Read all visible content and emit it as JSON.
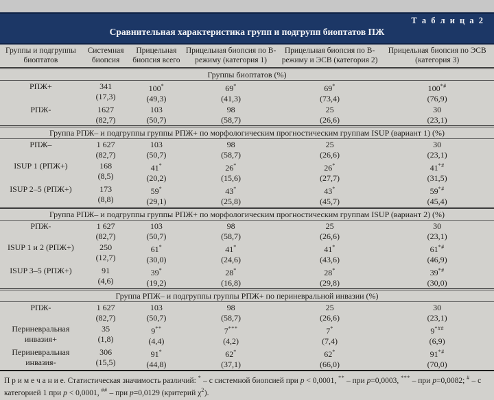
{
  "titlebar": {
    "tab": "Т а б л и ц а   2",
    "title": "Сравнительная характеристика групп и подгрупп биоптатов ПЖ"
  },
  "colors": {
    "navy_header": "#1c3766",
    "page_background": "#c7c7c7",
    "table_background": "#d2d1cd",
    "title_text": "#f2f3f6"
  },
  "table": {
    "columns": [
      "Группы и подгруппы биоптатов",
      "Системная биопсия",
      "Прицельная биопсия всего",
      "Прицельная биопсия по В-режиму (категория 1)",
      "Прицельная биопсия по В-режиму и ЭСВ (категория 2)",
      "Прицельная биопсия по ЭСВ (категория 3)"
    ],
    "sections": [
      {
        "header": "Группы биоптатов (%)",
        "rows": [
          {
            "label": "РПЖ+",
            "cells": [
              {
                "v": "341",
                "s": "",
                "p": "(17,3)"
              },
              {
                "v": "100",
                "s": "*",
                "p": "(49,3)"
              },
              {
                "v": "69",
                "s": "*",
                "p": "(41,3)"
              },
              {
                "v": "69",
                "s": "*",
                "p": "(73,4)"
              },
              {
                "v": "100",
                "s": "*#",
                "p": "(76,9)"
              }
            ]
          },
          {
            "label": "РПЖ-",
            "cells": [
              {
                "v": "1627",
                "s": "",
                "p": "(82,7)"
              },
              {
                "v": "103",
                "s": "",
                "p": "(50,7)"
              },
              {
                "v": "98",
                "s": "",
                "p": "(58,7)"
              },
              {
                "v": "25",
                "s": "",
                "p": "(26,6)"
              },
              {
                "v": "30",
                "s": "",
                "p": "(23,1)"
              }
            ]
          }
        ]
      },
      {
        "header": "Группа РПЖ– и подгруппы группы РПЖ+ по морфологическим прогностическим группам ISUP (вариант 1) (%)",
        "rows": [
          {
            "label": "РПЖ–",
            "cells": [
              {
                "v": "1 627",
                "s": "",
                "p": "(82,7)"
              },
              {
                "v": "103",
                "s": "",
                "p": "(50,7)"
              },
              {
                "v": "98",
                "s": "",
                "p": "(58,7)"
              },
              {
                "v": "25",
                "s": "",
                "p": "(26,6)"
              },
              {
                "v": "30",
                "s": "",
                "p": "(23,1)"
              }
            ]
          },
          {
            "label": "ISUP 1 (РПЖ+)",
            "cells": [
              {
                "v": "168",
                "s": "",
                "p": "(8,5)"
              },
              {
                "v": "41",
                "s": "*",
                "p": "(20,2)"
              },
              {
                "v": "26",
                "s": "*",
                "p": "(15,6)"
              },
              {
                "v": "26",
                "s": "*",
                "p": "(27,7)"
              },
              {
                "v": "41",
                "s": "*#",
                "p": "(31,5)"
              }
            ]
          },
          {
            "label": "ISUP 2–5 (РПЖ+)",
            "cells": [
              {
                "v": "173",
                "s": "",
                "p": "(8,8)"
              },
              {
                "v": "59",
                "s": "*",
                "p": "(29,1)"
              },
              {
                "v": "43",
                "s": "*",
                "p": "(25,8)"
              },
              {
                "v": "43",
                "s": "*",
                "p": "(45,7)"
              },
              {
                "v": "59",
                "s": "*#",
                "p": "(45,4)"
              }
            ]
          }
        ]
      },
      {
        "header": "Группа РПЖ– и подгруппы группы РПЖ+ по морфологическим прогностическим группам ISUP (вариант 2) (%)",
        "rows": [
          {
            "label": "РПЖ-",
            "cells": [
              {
                "v": "1 627",
                "s": "",
                "p": "(82,7)"
              },
              {
                "v": "103",
                "s": "",
                "p": "(50,7)"
              },
              {
                "v": "98",
                "s": "",
                "p": "(58,7)"
              },
              {
                "v": "25",
                "s": "",
                "p": "(26,6)"
              },
              {
                "v": "30",
                "s": "",
                "p": "(23,1)"
              }
            ]
          },
          {
            "label": "ISUP 1 и 2 (РПЖ+)",
            "cells": [
              {
                "v": "250",
                "s": "",
                "p": "(12,7)"
              },
              {
                "v": "61",
                "s": "*",
                "p": "(30,0)"
              },
              {
                "v": "41",
                "s": "*",
                "p": "(24,6)"
              },
              {
                "v": "41",
                "s": "*",
                "p": "(43,6)"
              },
              {
                "v": "61",
                "s": "*#",
                "p": "(46,9)"
              }
            ]
          },
          {
            "label": "ISUP 3–5 (РПЖ+)",
            "cells": [
              {
                "v": "91",
                "s": "",
                "p": "(4,6)"
              },
              {
                "v": "39",
                "s": "*",
                "p": "(19,2)"
              },
              {
                "v": "28",
                "s": "*",
                "p": "(16,8)"
              },
              {
                "v": "28",
                "s": "*",
                "p": "(29,8)"
              },
              {
                "v": "39",
                "s": "*#",
                "p": "(30,0)"
              }
            ]
          }
        ]
      },
      {
        "header": "Группа РПЖ– и подгруппы группы РПЖ+ по периневральной инвазии (%)",
        "rows": [
          {
            "label": "РПЖ-",
            "cells": [
              {
                "v": "1 627",
                "s": "",
                "p": "(82,7)"
              },
              {
                "v": "103",
                "s": "",
                "p": "(50,7)"
              },
              {
                "v": "98",
                "s": "",
                "p": "(58,7)"
              },
              {
                "v": "25",
                "s": "",
                "p": "(26,6)"
              },
              {
                "v": "30",
                "s": "",
                "p": "(23,1)"
              }
            ]
          },
          {
            "label": "Периневральная инвазия+",
            "cells": [
              {
                "v": "35",
                "s": "",
                "p": "(1,8)"
              },
              {
                "v": "9",
                "s": "**",
                "p": "(4,4)"
              },
              {
                "v": "7",
                "s": "***",
                "p": "(4,2)"
              },
              {
                "v": "7",
                "s": "*",
                "p": "(7,4)"
              },
              {
                "v": "9",
                "s": "*##",
                "p": "(6,9)"
              }
            ]
          },
          {
            "label": "Периневральная инвазия-",
            "cells": [
              {
                "v": "306",
                "s": "",
                "p": "(15,5)"
              },
              {
                "v": "91",
                "s": "*",
                "p": "(44,8)"
              },
              {
                "v": "62",
                "s": "*",
                "p": "(37,1)"
              },
              {
                "v": "62",
                "s": "*",
                "p": "(66,0)"
              },
              {
                "v": "91",
                "s": "*#",
                "p": "(70,0)"
              }
            ]
          }
        ]
      }
    ]
  },
  "footnote": {
    "segments": [
      {
        "t": "П р и м е ч а н и е."
      },
      {
        "t": " Статистическая значимость различий: "
      },
      {
        "t": "*",
        "sup": true
      },
      {
        "t": " – с системной биопсией при "
      },
      {
        "t": "p",
        "it": true
      },
      {
        "t": " < 0,0001, "
      },
      {
        "t": "**",
        "sup": true
      },
      {
        "t": " – при "
      },
      {
        "t": "p",
        "it": true
      },
      {
        "t": "=0,0003, "
      },
      {
        "t": "***",
        "sup": true
      },
      {
        "t": " – при "
      },
      {
        "t": "p",
        "it": true
      },
      {
        "t": "=0,0082; "
      },
      {
        "t": "#",
        "sup": true
      },
      {
        "t": " – с категорией 1 при "
      },
      {
        "t": "p",
        "it": true
      },
      {
        "t": " < 0,0001, "
      },
      {
        "t": "##",
        "sup": true
      },
      {
        "t": " – при "
      },
      {
        "t": "p",
        "it": true
      },
      {
        "t": "=0,0129 (критерий χ"
      },
      {
        "t": "2",
        "sup": true
      },
      {
        "t": ")."
      }
    ]
  }
}
